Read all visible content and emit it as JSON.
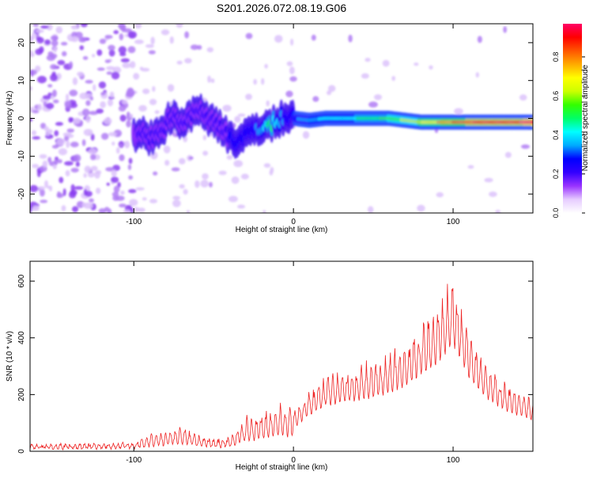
{
  "title": "S201.2026.072.08.19.G06",
  "chart_data": [
    {
      "type": "heatmap",
      "xlabel": "Height of straight line (km)",
      "ylabel": "Frequency (Hz)",
      "xlim": [
        -165,
        150
      ],
      "ylim": [
        -25,
        25
      ],
      "xticks": [
        -100,
        0,
        100
      ],
      "yticks": [
        -20,
        -10,
        0,
        10,
        20
      ],
      "colorbar": {
        "label": "Normalized spectral amplitude",
        "range": [
          0,
          0.97
        ],
        "ticks": [
          0.0,
          0.2,
          0.4,
          0.6,
          0.8
        ],
        "colors": [
          "#ffffff",
          "#e6ccff",
          "#9933ff",
          "#3300ff",
          "#0000ff",
          "#00aaff",
          "#00ffff",
          "#00ff66",
          "#33ff00",
          "#ccff00",
          "#ffff00",
          "#ffaa00",
          "#ff5500",
          "#ff0000",
          "#ff0066"
        ]
      },
      "ridge": {
        "x": [
          -100,
          -95,
          -90,
          -85,
          -80,
          -75,
          -70,
          -65,
          -60,
          -55,
          -50,
          -45,
          -40,
          -35,
          -30,
          -25,
          -20,
          -15,
          -10,
          -5,
          0,
          10,
          20,
          40,
          60,
          80,
          100,
          120,
          150
        ],
        "y": [
          -5,
          -4,
          -6,
          -3,
          -2,
          2,
          -2,
          1,
          3,
          0,
          -1,
          -2,
          -5,
          -6,
          -5,
          -3,
          -2,
          -2,
          -1,
          1,
          0,
          -0.5,
          0,
          0,
          0,
          -1,
          -1,
          -1,
          -1
        ],
        "amplitude": [
          0.15,
          0.2,
          0.22,
          0.2,
          0.18,
          0.22,
          0.2,
          0.22,
          0.2,
          0.2,
          0.18,
          0.2,
          0.25,
          0.25,
          0.28,
          0.3,
          0.35,
          0.5,
          0.4,
          0.3,
          0.3,
          0.35,
          0.4,
          0.45,
          0.55,
          0.65,
          0.8,
          0.9,
          0.95
        ]
      }
    },
    {
      "type": "line",
      "xlabel": "Height of straight line (km)",
      "ylabel": "SNR (10 * v/v)",
      "xlim": [
        -165,
        150
      ],
      "ylim": [
        0,
        670
      ],
      "xticks": [
        -100,
        0,
        100
      ],
      "yticks": [
        0,
        200,
        400,
        600
      ],
      "color": "#ee2222",
      "envelope": {
        "x": [
          -165,
          -120,
          -100,
          -90,
          -80,
          -70,
          -60,
          -50,
          -40,
          -30,
          -20,
          -10,
          0,
          10,
          20,
          30,
          40,
          50,
          60,
          70,
          80,
          90,
          95,
          100,
          105,
          110,
          120,
          130,
          140,
          150
        ],
        "y": [
          20,
          22,
          25,
          45,
          55,
          70,
          45,
          35,
          40,
          90,
          110,
          130,
          130,
          200,
          250,
          270,
          280,
          300,
          320,
          360,
          420,
          480,
          540,
          580,
          500,
          400,
          300,
          240,
          200,
          175
        ]
      }
    }
  ]
}
